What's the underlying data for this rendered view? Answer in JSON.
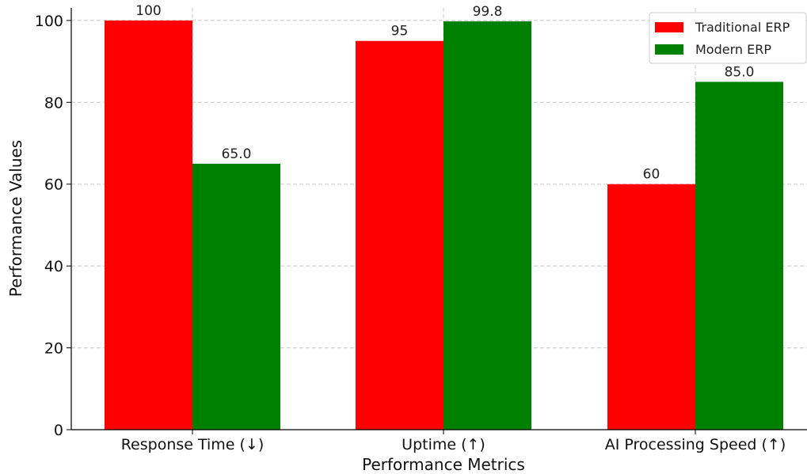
{
  "chart_data": {
    "type": "bar",
    "title": "",
    "xlabel": "Performance Metrics",
    "ylabel": "Performance Values",
    "categories": [
      "Response Time (↓)",
      "Uptime (↑)",
      "AI Processing Speed (↑)"
    ],
    "series": [
      {
        "name": "Traditional ERP",
        "color": "#ff0000",
        "values": [
          100,
          95,
          60
        ],
        "labels": [
          "100",
          "95",
          "60"
        ]
      },
      {
        "name": "Modern ERP",
        "color": "#008000",
        "values": [
          65.0,
          99.8,
          85.0
        ],
        "labels": [
          "65.0",
          "99.8",
          "85.0"
        ]
      }
    ],
    "yticks": [
      0,
      20,
      40,
      60,
      80,
      100
    ],
    "ylim": [
      0,
      105
    ],
    "grid": true,
    "legend_position": "top-right"
  }
}
